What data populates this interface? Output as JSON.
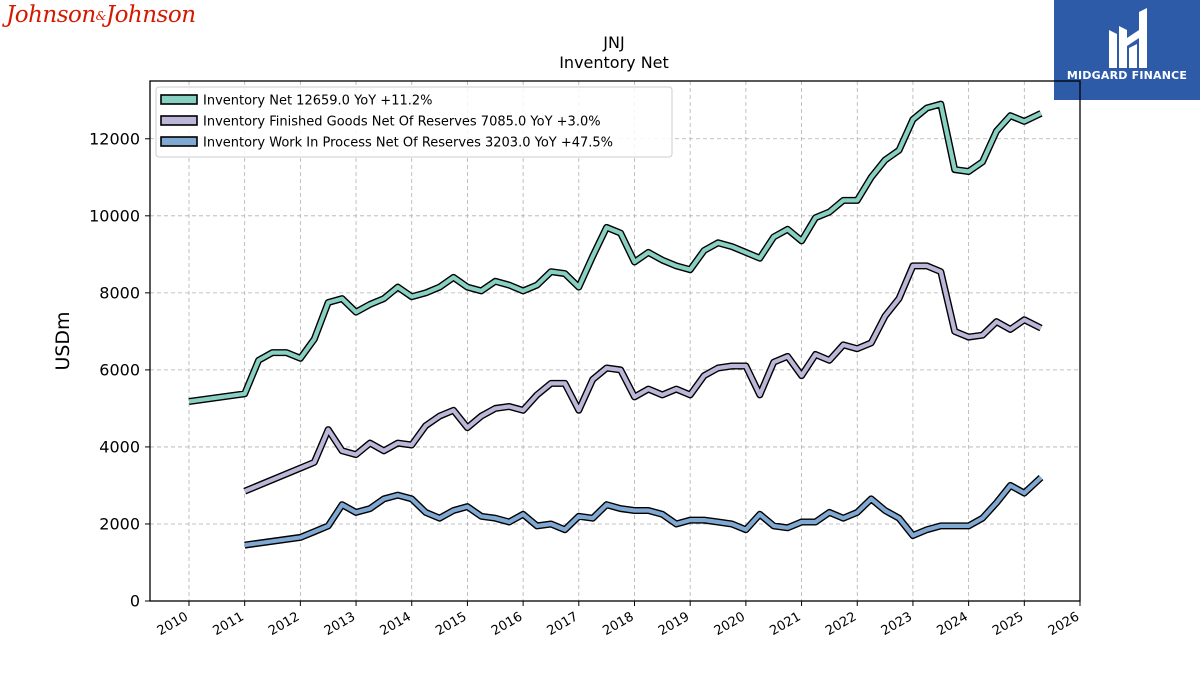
{
  "branding": {
    "left_logo_text_1": "Johnson",
    "left_logo_amp": "&",
    "left_logo_text_2": "Johnson",
    "right_logo_text": "MIDGARD FINANCE",
    "right_logo_bg": "#2d5ba8",
    "left_logo_color": "#d51900"
  },
  "chart_data": {
    "type": "line",
    "title": "JNJ",
    "subtitle": "Inventory Net",
    "ylabel": "USDm",
    "xlabel": "",
    "xlim": [
      2009.3,
      2026.0
    ],
    "ylim": [
      0,
      13500
    ],
    "grid": true,
    "legend_position": "top-left",
    "x_ticks": [
      2010,
      2011,
      2012,
      2013,
      2014,
      2015,
      2016,
      2017,
      2018,
      2019,
      2020,
      2021,
      2022,
      2023,
      2024,
      2025,
      2026
    ],
    "y_ticks": [
      0,
      2000,
      4000,
      6000,
      8000,
      10000,
      12000
    ],
    "series": [
      {
        "name": "Inventory Net",
        "legend_label": "Inventory Net  12659.0 YoY +11.2%",
        "color": "#88d0c2",
        "points": [
          [
            2010.0,
            5180
          ],
          [
            2011.0,
            5380
          ],
          [
            2011.25,
            6250
          ],
          [
            2011.5,
            6450
          ],
          [
            2011.75,
            6450
          ],
          [
            2012.0,
            6300
          ],
          [
            2012.25,
            6800
          ],
          [
            2012.5,
            7750
          ],
          [
            2012.75,
            7850
          ],
          [
            2013.0,
            7500
          ],
          [
            2013.25,
            7700
          ],
          [
            2013.5,
            7850
          ],
          [
            2013.75,
            8150
          ],
          [
            2014.0,
            7900
          ],
          [
            2014.25,
            8000
          ],
          [
            2014.5,
            8150
          ],
          [
            2014.75,
            8400
          ],
          [
            2015.0,
            8150
          ],
          [
            2015.25,
            8050
          ],
          [
            2015.5,
            8300
          ],
          [
            2015.75,
            8200
          ],
          [
            2016.0,
            8050
          ],
          [
            2016.25,
            8200
          ],
          [
            2016.5,
            8550
          ],
          [
            2016.75,
            8500
          ],
          [
            2017.0,
            8150
          ],
          [
            2017.25,
            8950
          ],
          [
            2017.5,
            9700
          ],
          [
            2017.75,
            9550
          ],
          [
            2018.0,
            8800
          ],
          [
            2018.25,
            9050
          ],
          [
            2018.5,
            8850
          ],
          [
            2018.75,
            8700
          ],
          [
            2019.0,
            8600
          ],
          [
            2019.25,
            9100
          ],
          [
            2019.5,
            9300
          ],
          [
            2019.75,
            9200
          ],
          [
            2020.0,
            9050
          ],
          [
            2020.25,
            8900
          ],
          [
            2020.5,
            9450
          ],
          [
            2020.75,
            9650
          ],
          [
            2021.0,
            9350
          ],
          [
            2021.25,
            9950
          ],
          [
            2021.5,
            10100
          ],
          [
            2021.75,
            10400
          ],
          [
            2022.0,
            10400
          ],
          [
            2022.25,
            11000
          ],
          [
            2022.5,
            11450
          ],
          [
            2022.75,
            11700
          ],
          [
            2023.0,
            12500
          ],
          [
            2023.25,
            12800
          ],
          [
            2023.5,
            12900
          ],
          [
            2023.75,
            11200
          ],
          [
            2024.0,
            11150
          ],
          [
            2024.25,
            11400
          ],
          [
            2024.5,
            12200
          ],
          [
            2024.75,
            12600
          ],
          [
            2025.0,
            12450
          ],
          [
            2025.3,
            12659
          ]
        ]
      },
      {
        "name": "Inventory Finished Goods Net Of Reserves",
        "legend_label": "Inventory Finished Goods Net Of Reserves  7085.0 YoY +3.0%",
        "color": "#bcb6d8",
        "points": [
          [
            2011.0,
            2850
          ],
          [
            2012.0,
            3450
          ],
          [
            2012.25,
            3600
          ],
          [
            2012.5,
            4450
          ],
          [
            2012.75,
            3900
          ],
          [
            2013.0,
            3800
          ],
          [
            2013.25,
            4100
          ],
          [
            2013.5,
            3900
          ],
          [
            2013.75,
            4100
          ],
          [
            2014.0,
            4050
          ],
          [
            2014.25,
            4550
          ],
          [
            2014.5,
            4800
          ],
          [
            2014.75,
            4950
          ],
          [
            2015.0,
            4500
          ],
          [
            2015.25,
            4800
          ],
          [
            2015.5,
            5000
          ],
          [
            2015.75,
            5050
          ],
          [
            2016.0,
            4950
          ],
          [
            2016.25,
            5350
          ],
          [
            2016.5,
            5650
          ],
          [
            2016.75,
            5650
          ],
          [
            2017.0,
            4950
          ],
          [
            2017.25,
            5750
          ],
          [
            2017.5,
            6050
          ],
          [
            2017.75,
            6000
          ],
          [
            2018.0,
            5300
          ],
          [
            2018.25,
            5500
          ],
          [
            2018.5,
            5350
          ],
          [
            2018.75,
            5500
          ],
          [
            2019.0,
            5350
          ],
          [
            2019.25,
            5850
          ],
          [
            2019.5,
            6050
          ],
          [
            2019.75,
            6100
          ],
          [
            2020.0,
            6100
          ],
          [
            2020.25,
            5350
          ],
          [
            2020.5,
            6200
          ],
          [
            2020.75,
            6350
          ],
          [
            2021.0,
            5850
          ],
          [
            2021.25,
            6400
          ],
          [
            2021.5,
            6250
          ],
          [
            2021.75,
            6650
          ],
          [
            2022.0,
            6550
          ],
          [
            2022.25,
            6700
          ],
          [
            2022.5,
            7400
          ],
          [
            2022.75,
            7850
          ],
          [
            2023.0,
            8700
          ],
          [
            2023.25,
            8700
          ],
          [
            2023.5,
            8550
          ],
          [
            2023.75,
            7000
          ],
          [
            2024.0,
            6850
          ],
          [
            2024.25,
            6900
          ],
          [
            2024.5,
            7250
          ],
          [
            2024.75,
            7050
          ],
          [
            2025.0,
            7300
          ],
          [
            2025.3,
            7085
          ]
        ]
      },
      {
        "name": "Inventory Work In Process Net Of Reserves",
        "legend_label": "Inventory Work In Process Net Of Reserves  3203.0 YoY +47.5%",
        "color": "#7fa9d2",
        "points": [
          [
            2011.0,
            1450
          ],
          [
            2012.0,
            1650
          ],
          [
            2012.25,
            1800
          ],
          [
            2012.5,
            1950
          ],
          [
            2012.75,
            2500
          ],
          [
            2013.0,
            2300
          ],
          [
            2013.25,
            2400
          ],
          [
            2013.5,
            2650
          ],
          [
            2013.75,
            2750
          ],
          [
            2014.0,
            2650
          ],
          [
            2014.25,
            2300
          ],
          [
            2014.5,
            2150
          ],
          [
            2014.75,
            2350
          ],
          [
            2015.0,
            2450
          ],
          [
            2015.25,
            2200
          ],
          [
            2015.5,
            2150
          ],
          [
            2015.75,
            2050
          ],
          [
            2016.0,
            2250
          ],
          [
            2016.25,
            1950
          ],
          [
            2016.5,
            2000
          ],
          [
            2016.75,
            1850
          ],
          [
            2017.0,
            2200
          ],
          [
            2017.25,
            2150
          ],
          [
            2017.5,
            2500
          ],
          [
            2017.75,
            2400
          ],
          [
            2018.0,
            2350
          ],
          [
            2018.25,
            2350
          ],
          [
            2018.5,
            2250
          ],
          [
            2018.75,
            2000
          ],
          [
            2019.0,
            2100
          ],
          [
            2019.25,
            2100
          ],
          [
            2019.5,
            2050
          ],
          [
            2019.75,
            2000
          ],
          [
            2020.0,
            1850
          ],
          [
            2020.25,
            2250
          ],
          [
            2020.5,
            1950
          ],
          [
            2020.75,
            1900
          ],
          [
            2021.0,
            2050
          ],
          [
            2021.25,
            2050
          ],
          [
            2021.5,
            2300
          ],
          [
            2021.75,
            2150
          ],
          [
            2022.0,
            2300
          ],
          [
            2022.25,
            2650
          ],
          [
            2022.5,
            2350
          ],
          [
            2022.75,
            2150
          ],
          [
            2023.0,
            1700
          ],
          [
            2023.25,
            1850
          ],
          [
            2023.5,
            1950
          ],
          [
            2023.75,
            1950
          ],
          [
            2024.0,
            1950
          ],
          [
            2024.25,
            2150
          ],
          [
            2024.5,
            2550
          ],
          [
            2024.75,
            3000
          ],
          [
            2025.0,
            2800
          ],
          [
            2025.3,
            3203
          ]
        ]
      }
    ]
  }
}
